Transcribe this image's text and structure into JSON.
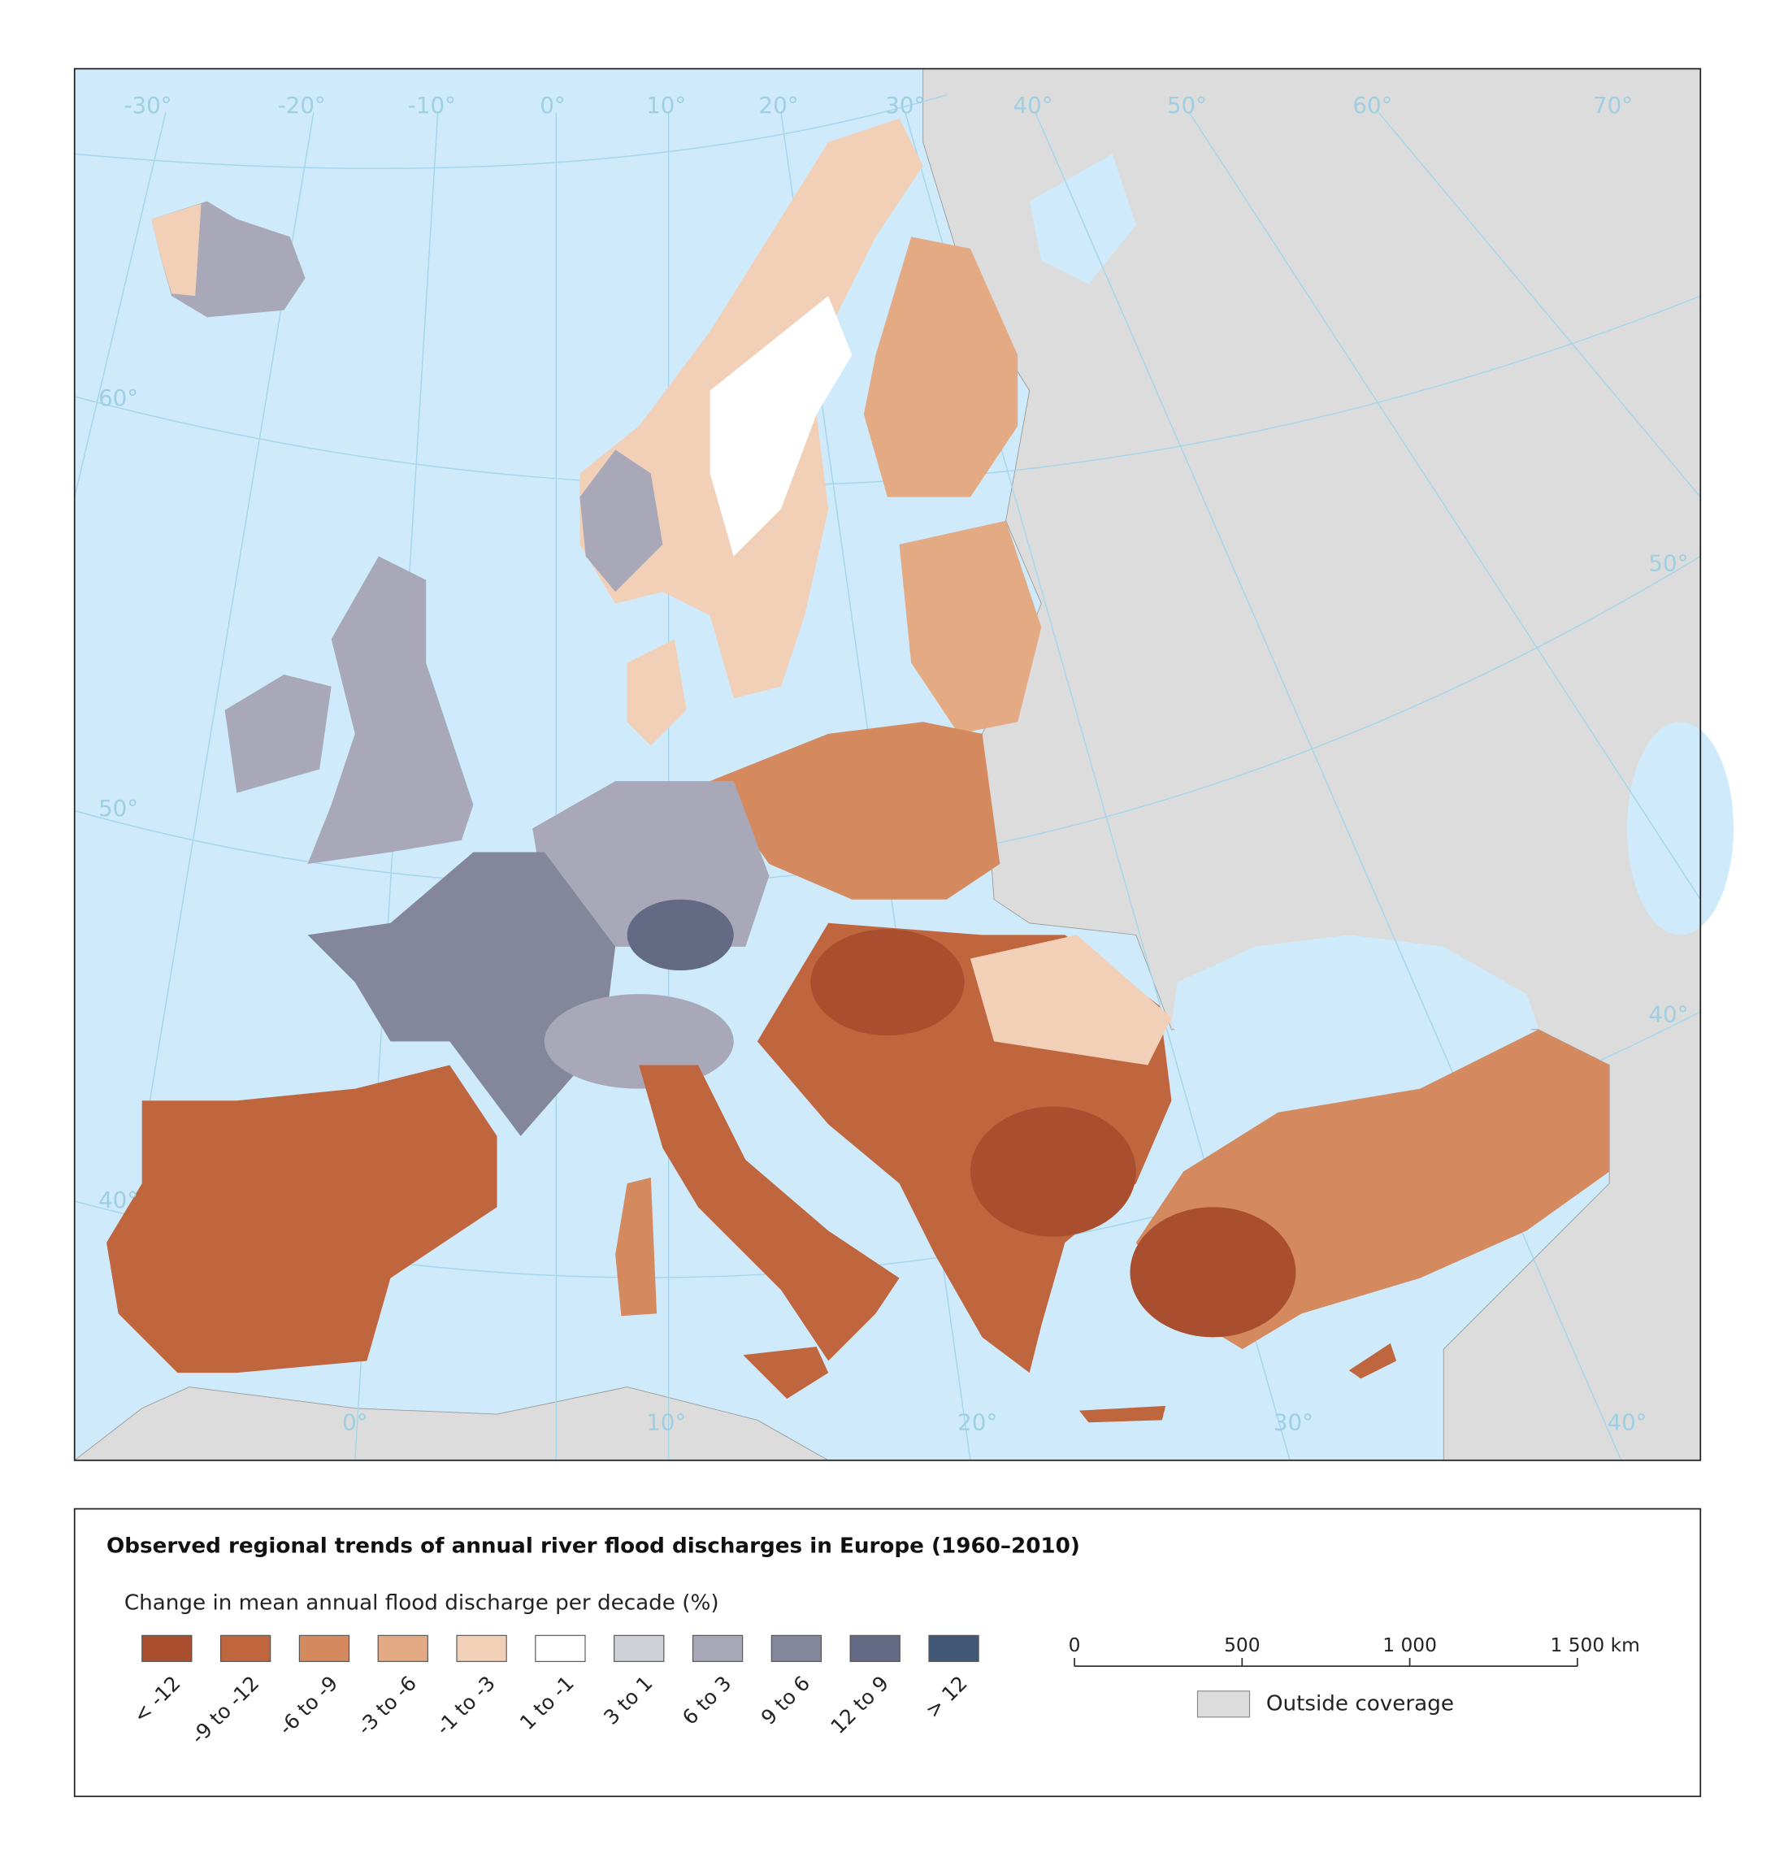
{
  "map": {
    "graticule_labels": {
      "top": [
        "-30°",
        "-20°",
        "-10°",
        "0°",
        "10°",
        "20°",
        "30°",
        "40°",
        "50°",
        "60°",
        "70°"
      ],
      "left": [
        "60°",
        "50°",
        "40°"
      ],
      "right": [
        "50°",
        "40°"
      ],
      "bottom": [
        "0°",
        "10°",
        "20°",
        "30°",
        "40°"
      ]
    }
  },
  "legend": {
    "title": "Observed regional trends of annual river flood discharges in Europe (1960–2010)",
    "subtitle": "Change in mean annual flood discharge per decade (%)",
    "classes": [
      {
        "label": "< -12",
        "color": "#a94f2f"
      },
      {
        "label": "-9 to -12",
        "color": "#c0663f"
      },
      {
        "label": "-6 to -9",
        "color": "#d4895f"
      },
      {
        "label": "-3 to -6",
        "color": "#e3aa84"
      },
      {
        "label": "-1 to -3",
        "color": "#f2d0b8"
      },
      {
        "label": "1 to -1",
        "color": "#ffffff"
      },
      {
        "label": "3 to 1",
        "color": "#cfcfd8"
      },
      {
        "label": "6 to 3",
        "color": "#a8a8b8"
      },
      {
        "label": "9 to 6",
        "color": "#84869c"
      },
      {
        "label": "12 to 9",
        "color": "#646a84"
      },
      {
        "label": "> 12",
        "color": "#425876"
      }
    ],
    "outside_coverage": "Outside coverage"
  },
  "scale_bar": {
    "ticks": [
      {
        "value": 0,
        "label": "0"
      },
      {
        "value": 500,
        "label": "500"
      },
      {
        "value": 1000,
        "label": "1 000"
      },
      {
        "value": 1500,
        "label": "1 500"
      }
    ],
    "unit": "km"
  }
}
